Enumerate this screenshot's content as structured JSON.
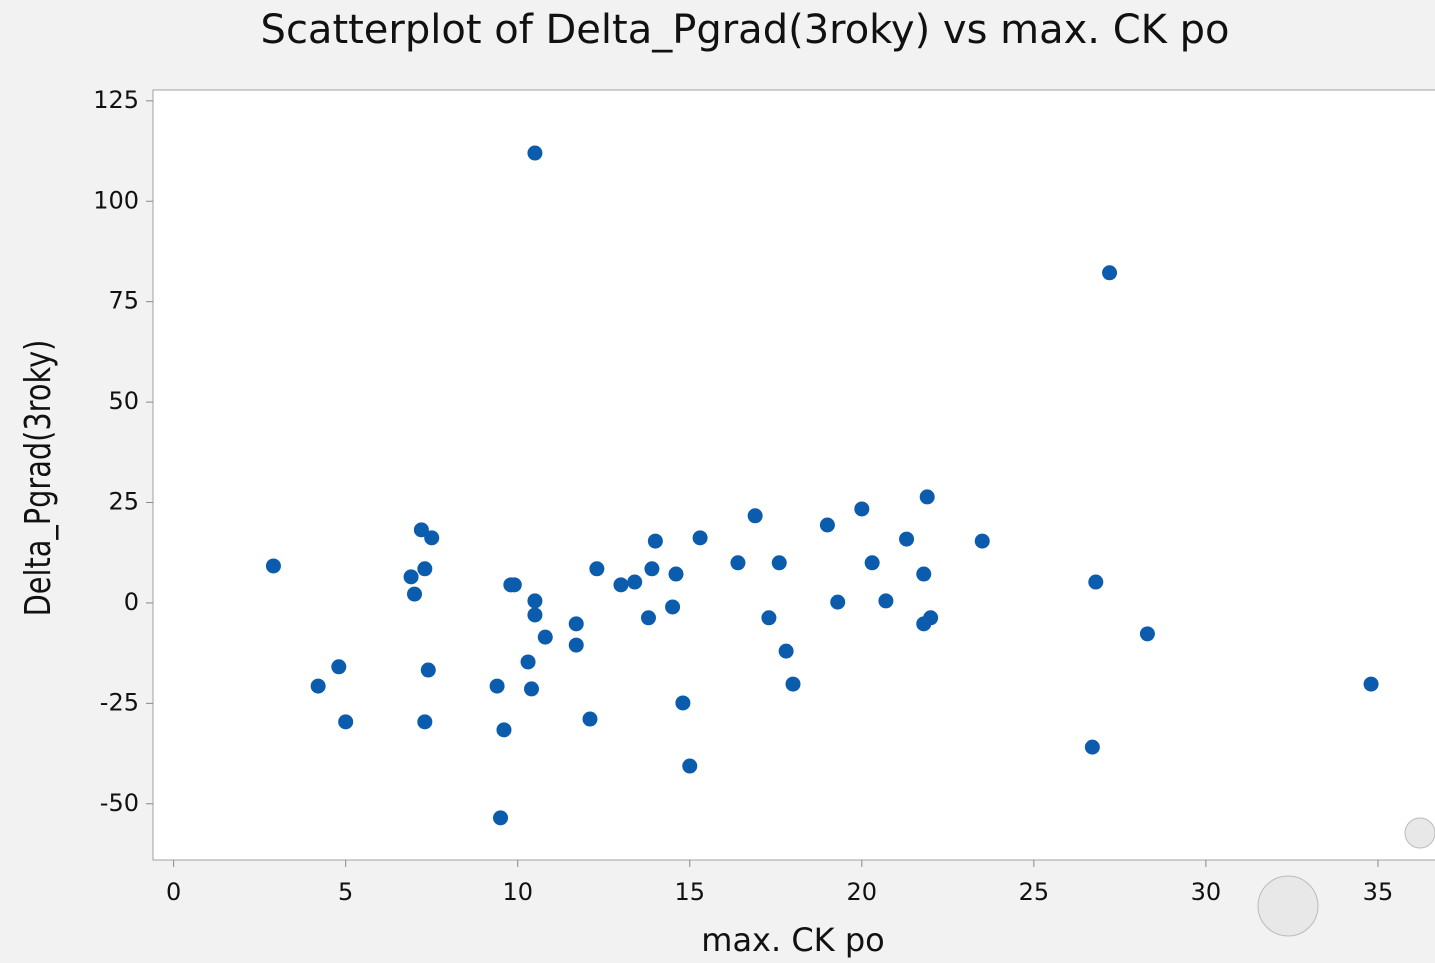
{
  "chart_data": {
    "type": "scatter",
    "title": "Scatterplot of Delta_Pgrad(3roky) vs max. CK po",
    "x_label": "max. CK po",
    "y_label": "Delta_Pgrad(3roky)",
    "color": "#0b5cad",
    "xlim": [
      -0.6,
      36.6
    ],
    "ylim": [
      -64,
      127.7
    ],
    "xticks": [
      0,
      5,
      10,
      15,
      20,
      25,
      30,
      35
    ],
    "yticks": [
      -50,
      -25,
      0,
      25,
      50,
      75,
      100,
      125
    ],
    "grid": false,
    "series": [
      {
        "name": "Delta_Pgrad(3roky)",
        "x": [
          2.9,
          4.2,
          4.8,
          5.0,
          6.9,
          7.0,
          7.2,
          7.3,
          7.5,
          7.4,
          7.3,
          9.4,
          9.5,
          9.6,
          9.8,
          9.9,
          10.5,
          10.5,
          10.5,
          10.3,
          10.4,
          10.8,
          11.7,
          11.7,
          12.1,
          12.3,
          13.0,
          13.4,
          13.8,
          13.9,
          14.0,
          14.5,
          14.6,
          14.8,
          15.0,
          15.3,
          16.4,
          16.9,
          17.3,
          17.6,
          17.8,
          18.0,
          19.0,
          19.3,
          20.0,
          20.3,
          20.7,
          21.3,
          21.9,
          21.8,
          21.8,
          22.0,
          23.5,
          26.7,
          26.8,
          27.2,
          28.3,
          34.8
        ],
        "values": [
          9.2,
          -20.7,
          -15.9,
          -29.6,
          6.5,
          2.2,
          18.2,
          8.5,
          16.2,
          -16.7,
          -29.6,
          -20.7,
          -53.5,
          -31.6,
          4.5,
          4.5,
          112,
          0.5,
          -3.0,
          -14.7,
          -21.4,
          -8.5,
          -5.2,
          -10.5,
          -28.9,
          8.5,
          4.5,
          5.2,
          -3.7,
          8.5,
          15.4,
          -1.0,
          7.2,
          -24.9,
          -40.6,
          16.2,
          10.0,
          21.7,
          -3.7,
          10.0,
          -12.0,
          -20.2,
          19.4,
          0.2,
          23.4,
          10.0,
          0.5,
          15.9,
          26.4,
          7.2,
          -5.2,
          -3.7,
          15.4,
          -35.9,
          5.2,
          82.2,
          -7.7,
          -20.2
        ]
      }
    ]
  }
}
